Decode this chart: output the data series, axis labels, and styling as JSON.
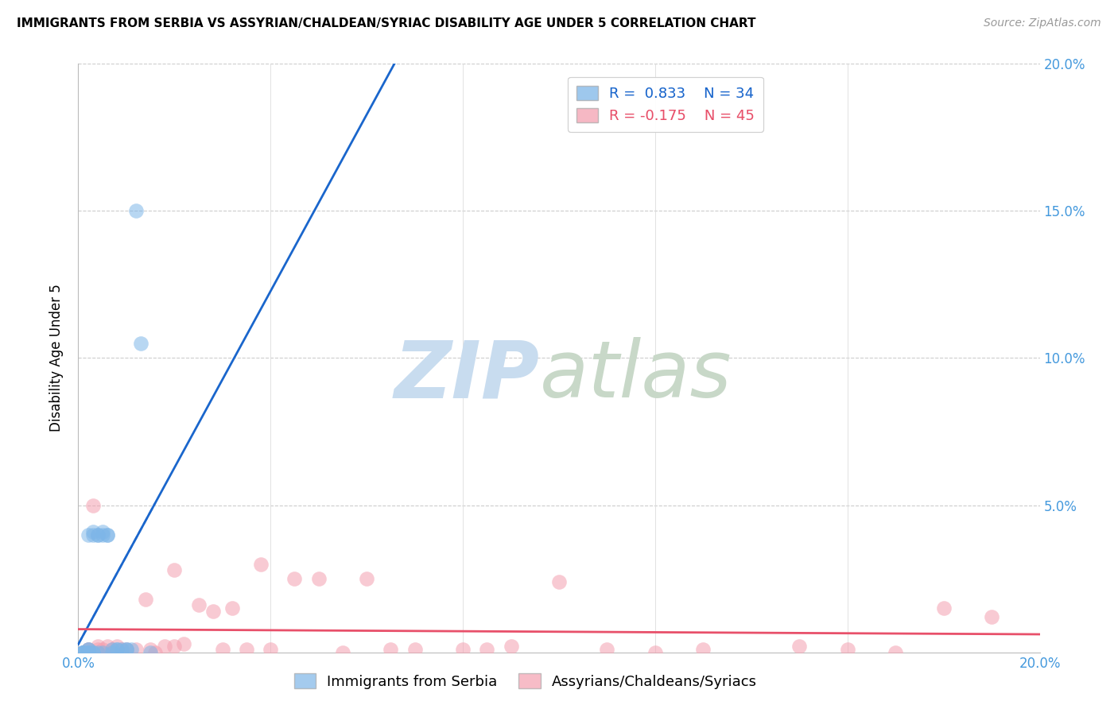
{
  "title": "IMMIGRANTS FROM SERBIA VS ASSYRIAN/CHALDEAN/SYRIAC DISABILITY AGE UNDER 5 CORRELATION CHART",
  "source": "Source: ZipAtlas.com",
  "ylabel_label": "Disability Age Under 5",
  "xlim": [
    0.0,
    0.2
  ],
  "ylim": [
    0.0,
    0.2
  ],
  "serbia_color": "#7EB6E8",
  "assyrian_color": "#F4A0B0",
  "serbia_R": 0.833,
  "serbia_N": 34,
  "assyrian_R": -0.175,
  "assyrian_N": 45,
  "serbia_line_color": "#1A66CC",
  "assyrian_line_color": "#E8506A",
  "serbia_points_x": [
    0.001,
    0.001,
    0.001,
    0.001,
    0.001,
    0.002,
    0.002,
    0.002,
    0.002,
    0.002,
    0.002,
    0.003,
    0.003,
    0.003,
    0.003,
    0.004,
    0.004,
    0.004,
    0.005,
    0.005,
    0.005,
    0.006,
    0.006,
    0.007,
    0.007,
    0.008,
    0.008,
    0.009,
    0.01,
    0.01,
    0.011,
    0.012,
    0.013,
    0.015
  ],
  "serbia_points_y": [
    0.0,
    0.0,
    0.0,
    0.0,
    0.0,
    0.0,
    0.0,
    0.0,
    0.001,
    0.001,
    0.04,
    0.0,
    0.0,
    0.04,
    0.041,
    0.0,
    0.04,
    0.04,
    0.0,
    0.04,
    0.041,
    0.04,
    0.04,
    0.0,
    0.001,
    0.001,
    0.001,
    0.001,
    0.001,
    0.001,
    0.001,
    0.15,
    0.105,
    0.0
  ],
  "assyrian_points_x": [
    0.001,
    0.002,
    0.003,
    0.004,
    0.005,
    0.006,
    0.008,
    0.009,
    0.01,
    0.012,
    0.014,
    0.015,
    0.016,
    0.018,
    0.02,
    0.022,
    0.025,
    0.028,
    0.03,
    0.032,
    0.035,
    0.038,
    0.04,
    0.045,
    0.05,
    0.055,
    0.06,
    0.065,
    0.07,
    0.08,
    0.085,
    0.09,
    0.1,
    0.11,
    0.12,
    0.13,
    0.15,
    0.16,
    0.17,
    0.18,
    0.19,
    0.002,
    0.004,
    0.007,
    0.02
  ],
  "assyrian_points_y": [
    0.0,
    0.001,
    0.05,
    0.001,
    0.001,
    0.002,
    0.002,
    0.001,
    0.001,
    0.001,
    0.018,
    0.001,
    0.0,
    0.002,
    0.028,
    0.003,
    0.016,
    0.014,
    0.001,
    0.015,
    0.001,
    0.03,
    0.001,
    0.025,
    0.025,
    0.0,
    0.025,
    0.001,
    0.001,
    0.001,
    0.001,
    0.002,
    0.024,
    0.001,
    0.0,
    0.001,
    0.002,
    0.001,
    0.0,
    0.015,
    0.012,
    0.001,
    0.002,
    0.001,
    0.002
  ]
}
